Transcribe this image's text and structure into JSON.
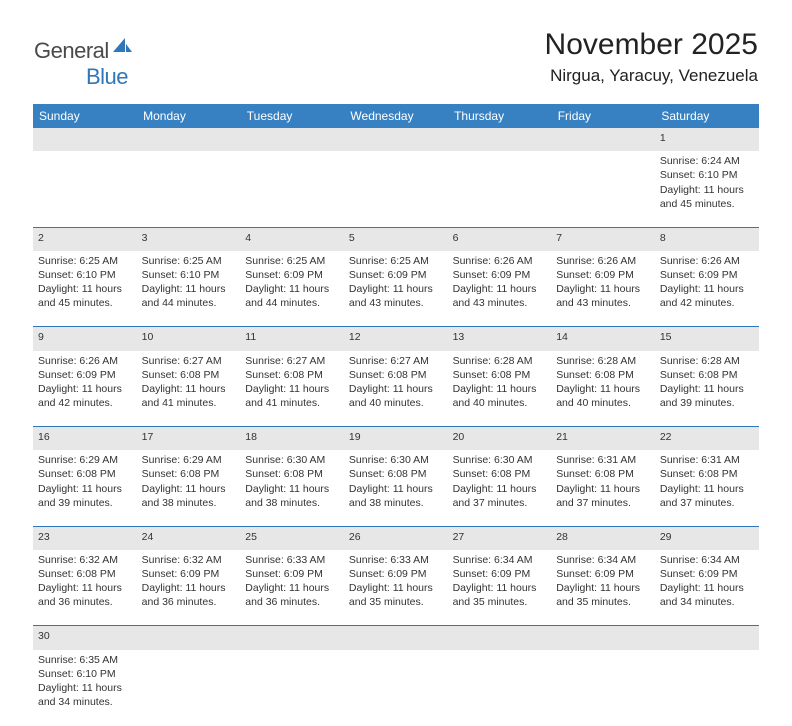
{
  "logo": {
    "text_dark": "General",
    "text_blue": "Blue"
  },
  "title": {
    "month": "November 2025",
    "location": "Nirgua, Yaracuy, Venezuela"
  },
  "colors": {
    "header_bg": "#3781c2",
    "header_text": "#ffffff",
    "daynum_bg": "#e7e7e7",
    "border": "#2f77b8",
    "logo_blue": "#2f77b8",
    "logo_dark": "#4a4a4a"
  },
  "days_of_week": [
    "Sunday",
    "Monday",
    "Tuesday",
    "Wednesday",
    "Thursday",
    "Friday",
    "Saturday"
  ],
  "weeks": [
    [
      null,
      null,
      null,
      null,
      null,
      null,
      {
        "n": "1",
        "sr": "6:24 AM",
        "ss": "6:10 PM",
        "dl1": "11 hours",
        "dl2": "and 45 minutes."
      }
    ],
    [
      {
        "n": "2",
        "sr": "6:25 AM",
        "ss": "6:10 PM",
        "dl1": "11 hours",
        "dl2": "and 45 minutes."
      },
      {
        "n": "3",
        "sr": "6:25 AM",
        "ss": "6:10 PM",
        "dl1": "11 hours",
        "dl2": "and 44 minutes."
      },
      {
        "n": "4",
        "sr": "6:25 AM",
        "ss": "6:09 PM",
        "dl1": "11 hours",
        "dl2": "and 44 minutes."
      },
      {
        "n": "5",
        "sr": "6:25 AM",
        "ss": "6:09 PM",
        "dl1": "11 hours",
        "dl2": "and 43 minutes."
      },
      {
        "n": "6",
        "sr": "6:26 AM",
        "ss": "6:09 PM",
        "dl1": "11 hours",
        "dl2": "and 43 minutes."
      },
      {
        "n": "7",
        "sr": "6:26 AM",
        "ss": "6:09 PM",
        "dl1": "11 hours",
        "dl2": "and 43 minutes."
      },
      {
        "n": "8",
        "sr": "6:26 AM",
        "ss": "6:09 PM",
        "dl1": "11 hours",
        "dl2": "and 42 minutes."
      }
    ],
    [
      {
        "n": "9",
        "sr": "6:26 AM",
        "ss": "6:09 PM",
        "dl1": "11 hours",
        "dl2": "and 42 minutes."
      },
      {
        "n": "10",
        "sr": "6:27 AM",
        "ss": "6:08 PM",
        "dl1": "11 hours",
        "dl2": "and 41 minutes."
      },
      {
        "n": "11",
        "sr": "6:27 AM",
        "ss": "6:08 PM",
        "dl1": "11 hours",
        "dl2": "and 41 minutes."
      },
      {
        "n": "12",
        "sr": "6:27 AM",
        "ss": "6:08 PM",
        "dl1": "11 hours",
        "dl2": "and 40 minutes."
      },
      {
        "n": "13",
        "sr": "6:28 AM",
        "ss": "6:08 PM",
        "dl1": "11 hours",
        "dl2": "and 40 minutes."
      },
      {
        "n": "14",
        "sr": "6:28 AM",
        "ss": "6:08 PM",
        "dl1": "11 hours",
        "dl2": "and 40 minutes."
      },
      {
        "n": "15",
        "sr": "6:28 AM",
        "ss": "6:08 PM",
        "dl1": "11 hours",
        "dl2": "and 39 minutes."
      }
    ],
    [
      {
        "n": "16",
        "sr": "6:29 AM",
        "ss": "6:08 PM",
        "dl1": "11 hours",
        "dl2": "and 39 minutes."
      },
      {
        "n": "17",
        "sr": "6:29 AM",
        "ss": "6:08 PM",
        "dl1": "11 hours",
        "dl2": "and 38 minutes."
      },
      {
        "n": "18",
        "sr": "6:30 AM",
        "ss": "6:08 PM",
        "dl1": "11 hours",
        "dl2": "and 38 minutes."
      },
      {
        "n": "19",
        "sr": "6:30 AM",
        "ss": "6:08 PM",
        "dl1": "11 hours",
        "dl2": "and 38 minutes."
      },
      {
        "n": "20",
        "sr": "6:30 AM",
        "ss": "6:08 PM",
        "dl1": "11 hours",
        "dl2": "and 37 minutes."
      },
      {
        "n": "21",
        "sr": "6:31 AM",
        "ss": "6:08 PM",
        "dl1": "11 hours",
        "dl2": "and 37 minutes."
      },
      {
        "n": "22",
        "sr": "6:31 AM",
        "ss": "6:08 PM",
        "dl1": "11 hours",
        "dl2": "and 37 minutes."
      }
    ],
    [
      {
        "n": "23",
        "sr": "6:32 AM",
        "ss": "6:08 PM",
        "dl1": "11 hours",
        "dl2": "and 36 minutes."
      },
      {
        "n": "24",
        "sr": "6:32 AM",
        "ss": "6:09 PM",
        "dl1": "11 hours",
        "dl2": "and 36 minutes."
      },
      {
        "n": "25",
        "sr": "6:33 AM",
        "ss": "6:09 PM",
        "dl1": "11 hours",
        "dl2": "and 36 minutes."
      },
      {
        "n": "26",
        "sr": "6:33 AM",
        "ss": "6:09 PM",
        "dl1": "11 hours",
        "dl2": "and 35 minutes."
      },
      {
        "n": "27",
        "sr": "6:34 AM",
        "ss": "6:09 PM",
        "dl1": "11 hours",
        "dl2": "and 35 minutes."
      },
      {
        "n": "28",
        "sr": "6:34 AM",
        "ss": "6:09 PM",
        "dl1": "11 hours",
        "dl2": "and 35 minutes."
      },
      {
        "n": "29",
        "sr": "6:34 AM",
        "ss": "6:09 PM",
        "dl1": "11 hours",
        "dl2": "and 34 minutes."
      }
    ],
    [
      {
        "n": "30",
        "sr": "6:35 AM",
        "ss": "6:10 PM",
        "dl1": "11 hours",
        "dl2": "and 34 minutes."
      },
      null,
      null,
      null,
      null,
      null,
      null
    ]
  ],
  "labels": {
    "sunrise": "Sunrise:",
    "sunset": "Sunset:",
    "daylight": "Daylight:"
  }
}
